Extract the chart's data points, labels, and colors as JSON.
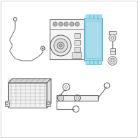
{
  "bg_color": "#ffffff",
  "border_color": "#c8c8c8",
  "line_color": "#666666",
  "highlight_color": "#4db8d4",
  "highlight_fill": "#a8dcea",
  "figsize": [
    2.0,
    2.0
  ],
  "dpi": 100
}
